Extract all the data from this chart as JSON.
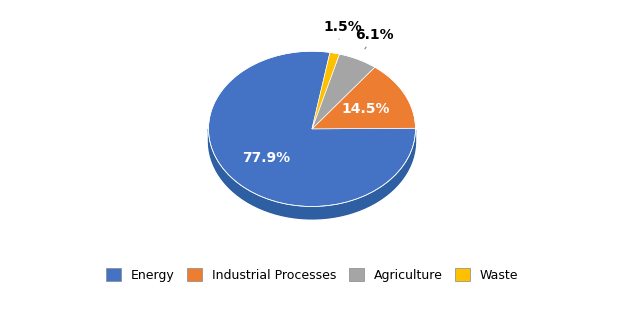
{
  "labels": [
    "Energy",
    "Industrial Processes",
    "Agriculture",
    "Waste"
  ],
  "values": [
    77.9,
    14.5,
    6.1,
    1.5
  ],
  "colors": [
    "#4472C4",
    "#ED7D31",
    "#A5A5A5",
    "#FFC000"
  ],
  "side_colors": [
    "#2E5FA3",
    "#B85E1E",
    "#7A7A7A",
    "#B8860B"
  ],
  "startangle": 80,
  "figsize": [
    6.24,
    3.35
  ],
  "dpi": 100,
  "background_color": "#FFFFFF",
  "pct_labels": [
    "77.9%",
    "14.5%",
    "6.1%",
    "1.5%"
  ],
  "autopct_fontsize": 10,
  "legend_fontsize": 9,
  "depth": 0.12
}
